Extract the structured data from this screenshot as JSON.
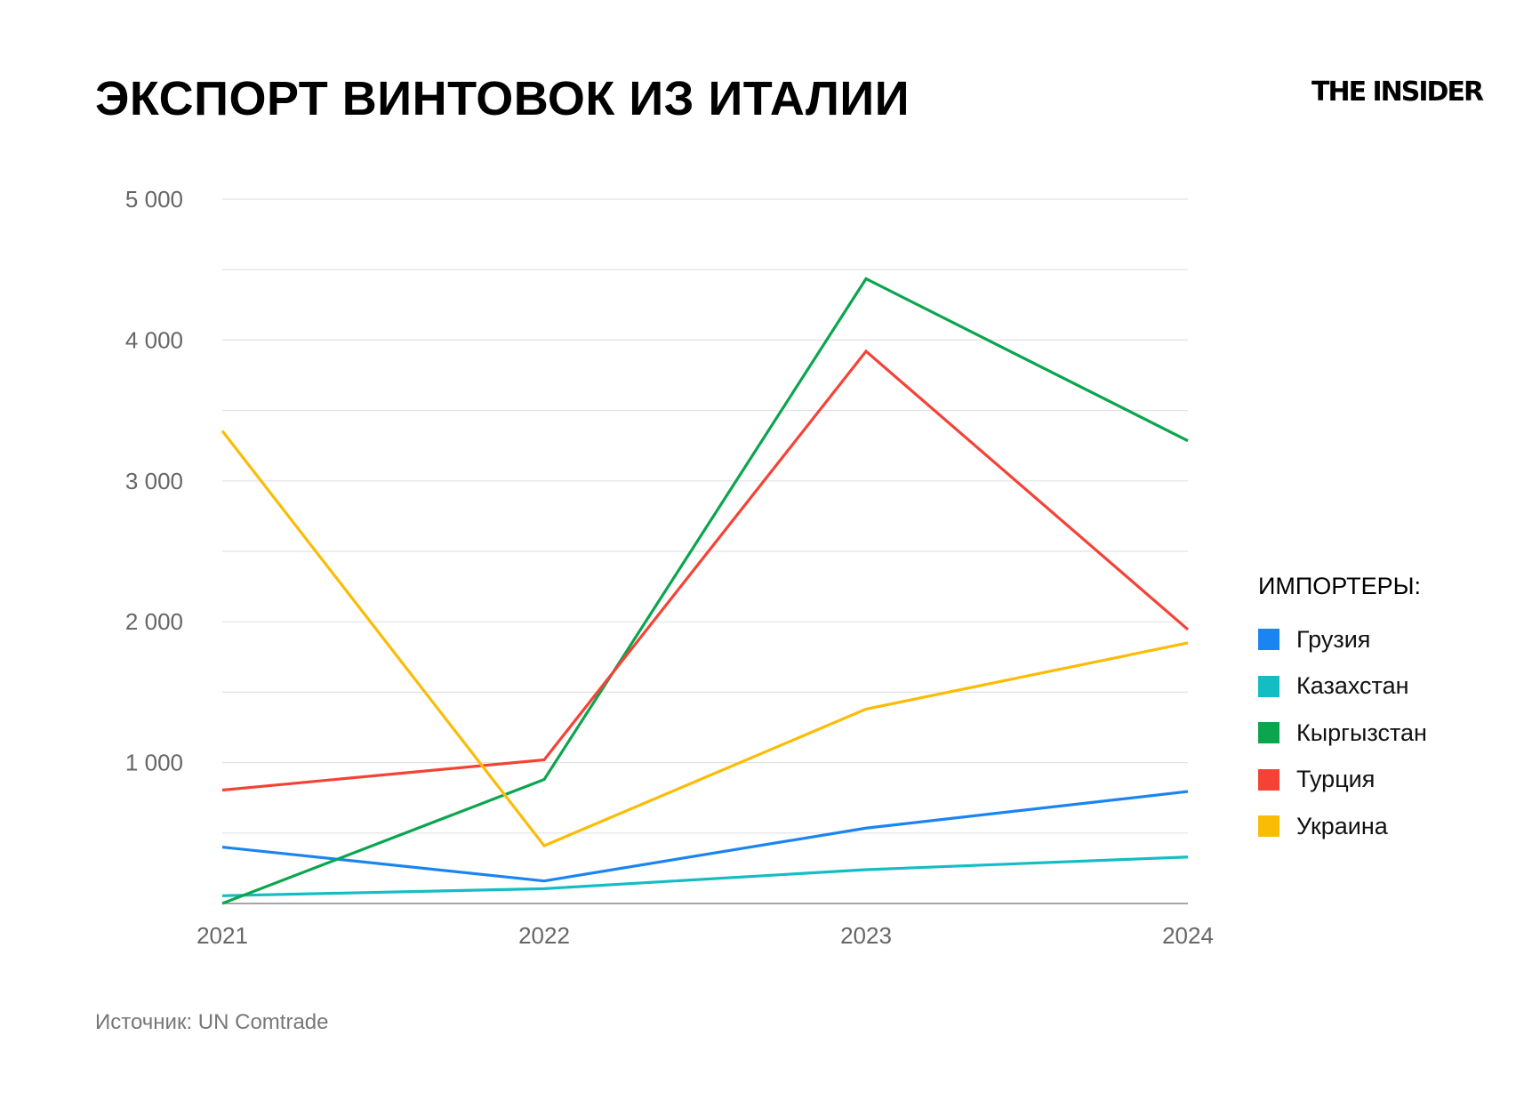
{
  "title": "ЭКСПОРТ ВИНТОВОК ИЗ ИТАЛИИ",
  "logo": "THE INSIDER",
  "source": "Источник: UN Comtrade",
  "chart_data": {
    "type": "line",
    "title": "ЭКСПОРТ ВИНТОВОК ИЗ ИТАЛИИ",
    "x": [
      "2021",
      "2022",
      "2023",
      "2024"
    ],
    "ylim": [
      0,
      5000
    ],
    "yticks": [
      1000,
      2000,
      3000,
      4000,
      5000
    ],
    "ytick_labels": [
      "1 000",
      "2 000",
      "3 000",
      "4 000",
      "5 000"
    ],
    "grid": true,
    "legend_title": "ИМПОРТЕРЫ:",
    "legend_placement": "right",
    "series": [
      {
        "name": "Грузия",
        "color": "#1a85f0",
        "values": [
          400,
          160,
          535,
          795
        ]
      },
      {
        "name": "Казахстан",
        "color": "#14bdc4",
        "values": [
          55,
          105,
          240,
          330
        ]
      },
      {
        "name": "Кыргызстан",
        "color": "#0ba54e",
        "values": [
          0,
          880,
          4435,
          3285
        ]
      },
      {
        "name": "Турция",
        "color": "#f44336",
        "values": [
          805,
          1020,
          3920,
          1945
        ]
      },
      {
        "name": "Украина",
        "color": "#fbbc05",
        "values": [
          3355,
          410,
          1380,
          1850
        ]
      }
    ]
  }
}
